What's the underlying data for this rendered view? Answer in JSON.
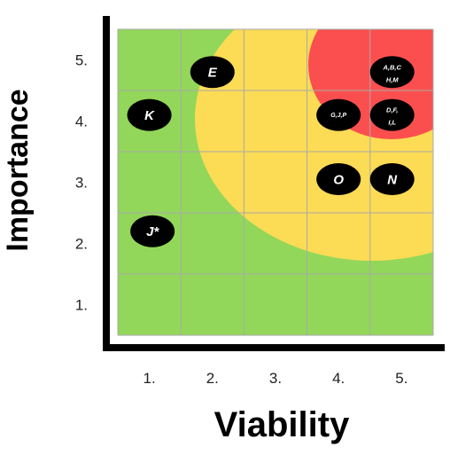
{
  "chart_data": {
    "type": "scatter",
    "title": "",
    "xlabel": "Viability",
    "ylabel": "Importance",
    "xlim": [
      0.5,
      5.5
    ],
    "ylim": [
      0.5,
      5.5
    ],
    "x_ticks": [
      "1.",
      "2.",
      "3.",
      "4.",
      "5."
    ],
    "y_ticks": [
      "1.",
      "2.",
      "3.",
      "4.",
      "5."
    ],
    "grid": true,
    "background_zones": [
      {
        "zone": "green",
        "color": "#92d75a"
      },
      {
        "zone": "yellow",
        "color": "#fcdb55"
      },
      {
        "zone": "red",
        "color": "#fb4f4f"
      }
    ],
    "bubble_color": "#000000",
    "points": [
      {
        "label": "E",
        "x": 2.0,
        "y": 4.8
      },
      {
        "label": "K",
        "x": 1.0,
        "y": 4.1
      },
      {
        "label": "J*",
        "x": 1.05,
        "y": 2.2
      },
      {
        "label": "G,J,P",
        "x": 4.0,
        "y": 4.1
      },
      {
        "label": "O",
        "x": 4.0,
        "y": 3.05
      },
      {
        "label": "N",
        "x": 4.85,
        "y": 3.05
      },
      {
        "label": "A,B,C H,M",
        "line1": "A,B,C",
        "line2": "H,M",
        "x": 4.85,
        "y": 4.8
      },
      {
        "label": "D,F, I,L",
        "line1": "D,F,",
        "line2": "I,L",
        "x": 4.85,
        "y": 4.1
      }
    ]
  }
}
